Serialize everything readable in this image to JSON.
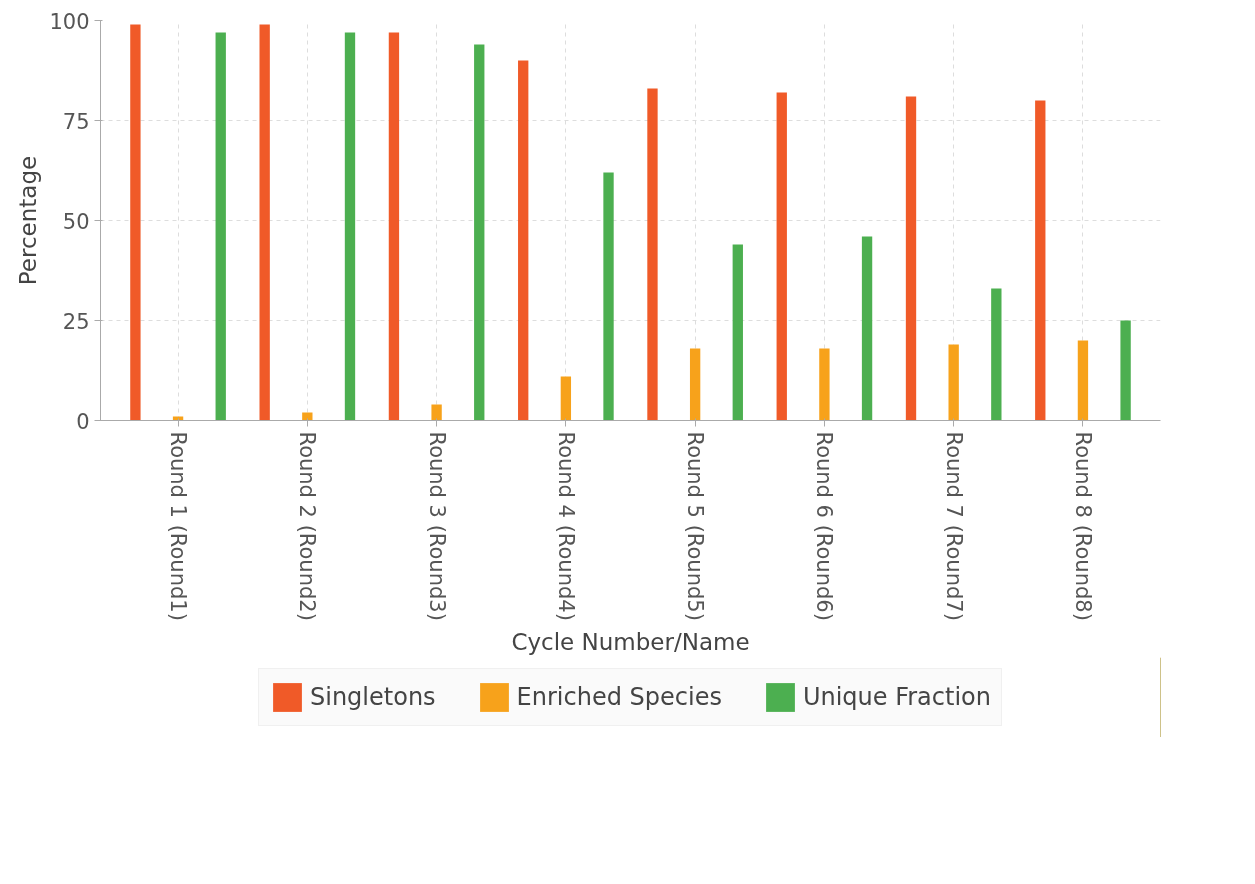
{
  "chart_data": {
    "type": "bar",
    "xlabel": "Cycle Number/Name",
    "ylabel": "Percentage",
    "categories": [
      "Round 1 (Round1)",
      "Round 2 (Round2)",
      "Round 3 (Round3)",
      "Round 4 (Round4)",
      "Round 5 (Round5)",
      "Round 6 (Round6)",
      "Round 7 (Round7)",
      "Round 8 (Round8)"
    ],
    "series": [
      {
        "name": "Singletons",
        "color": "#f05a28",
        "values": [
          99,
          99,
          97,
          90,
          83,
          82,
          81,
          80
        ]
      },
      {
        "name": "Enriched Species",
        "color": "#f7a21b",
        "values": [
          1,
          2,
          4,
          11,
          18,
          18,
          19,
          20
        ]
      },
      {
        "name": "Unique Fraction",
        "color": "#4caf50",
        "values": [
          97,
          97,
          94,
          62,
          44,
          46,
          33,
          25
        ]
      }
    ],
    "ylim": [
      0,
      100
    ],
    "yticks": [
      0,
      25,
      50,
      75,
      100
    ],
    "grid": true,
    "legend": "bottom"
  }
}
